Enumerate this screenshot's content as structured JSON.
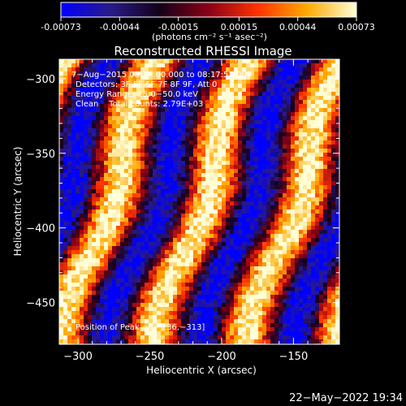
{
  "colors": {
    "background": "#000000",
    "foreground": "#ffffff",
    "colorbar_stops": [
      "#0000ff",
      "#2a1a8a",
      "#14001a",
      "#8a0018",
      "#ff3300",
      "#ffaa00",
      "#ffffd8"
    ]
  },
  "colorbar": {
    "tick_labels": [
      "-0.00073",
      "-0.00044",
      "-0.00015",
      "0.00015",
      "0.00044",
      "0.00073"
    ],
    "unit_label": "(photons cm⁻² s⁻¹ asec⁻²)",
    "range": [
      -0.00073,
      0.00073
    ]
  },
  "chart_data": {
    "type": "heatmap",
    "title": "Reconstructed RHESSI Image",
    "xlabel": "Heliocentric X (arcsec)",
    "ylabel": "Heliocentric Y (arcsec)",
    "xlim": [
      -313,
      -118
    ],
    "ylim": [
      -478,
      -287
    ],
    "x_ticks": [
      -300,
      -250,
      -200,
      -150
    ],
    "x_tick_labels": [
      "−300",
      "−250",
      "−200",
      "−150"
    ],
    "y_ticks": [
      -300,
      -350,
      -400,
      -450
    ],
    "y_tick_labels": [
      "−300",
      "−350",
      "−400",
      "−450"
    ],
    "grid": false,
    "annotations": [
      "7−Aug−2015 08:17:00.000 to 08:17:52.000",
      "Detectors: 3F 5F 6F 7F 8F 9F, Att 0",
      "Energy Range: 25.0−50.0 keV",
      "Clean    Total counts: 2.79E+03"
    ],
    "peak_label": "Position of Peak = [−236,−313]",
    "peak_position": [
      -236,
      -313
    ]
  },
  "footer": {
    "timestamp": "22−May−2022 19:34"
  }
}
